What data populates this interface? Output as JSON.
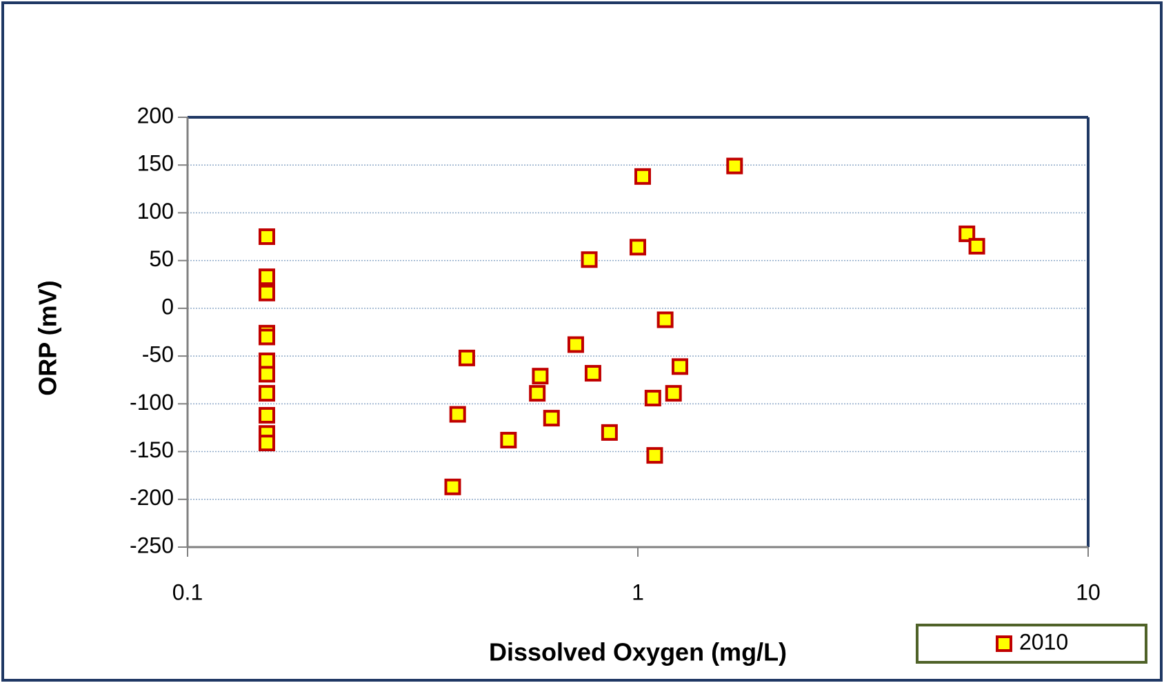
{
  "chart_data": {
    "type": "scatter",
    "x_label": "Dissolved Oxygen (mg/L)",
    "y_label": "ORP (mV)",
    "xscale": "log",
    "xlim": [
      0.1,
      10
    ],
    "xticks": [
      0.1,
      1,
      10
    ],
    "ylim": [
      -250,
      200
    ],
    "yticks": [
      200,
      150,
      100,
      50,
      0,
      -50,
      -100,
      -150,
      -200,
      -250
    ],
    "grid": true,
    "legend": "bottom-right",
    "series": [
      {
        "name": "2010",
        "color": "#ffff00",
        "edgecolor": "#c00000",
        "x": [
          0.15,
          0.15,
          0.15,
          0.15,
          0.15,
          0.15,
          0.15,
          0.15,
          0.15,
          0.15,
          0.15,
          0.388,
          0.398,
          0.417,
          0.516,
          0.598,
          0.607,
          0.643,
          0.728,
          0.78,
          0.795,
          0.865,
          1.0,
          1.025,
          1.08,
          1.09,
          1.15,
          1.2,
          1.24,
          1.64,
          5.38,
          5.66
        ],
        "values": [
          75,
          33,
          16,
          -26,
          -30,
          -55,
          -69,
          -89,
          -112,
          -131,
          -141,
          -187,
          -111,
          -52,
          -138,
          -89,
          -71,
          -115,
          -38,
          51,
          -68,
          -130,
          64,
          138,
          -94,
          -154,
          -12,
          -89,
          -61,
          149,
          78,
          65
        ]
      }
    ]
  }
}
